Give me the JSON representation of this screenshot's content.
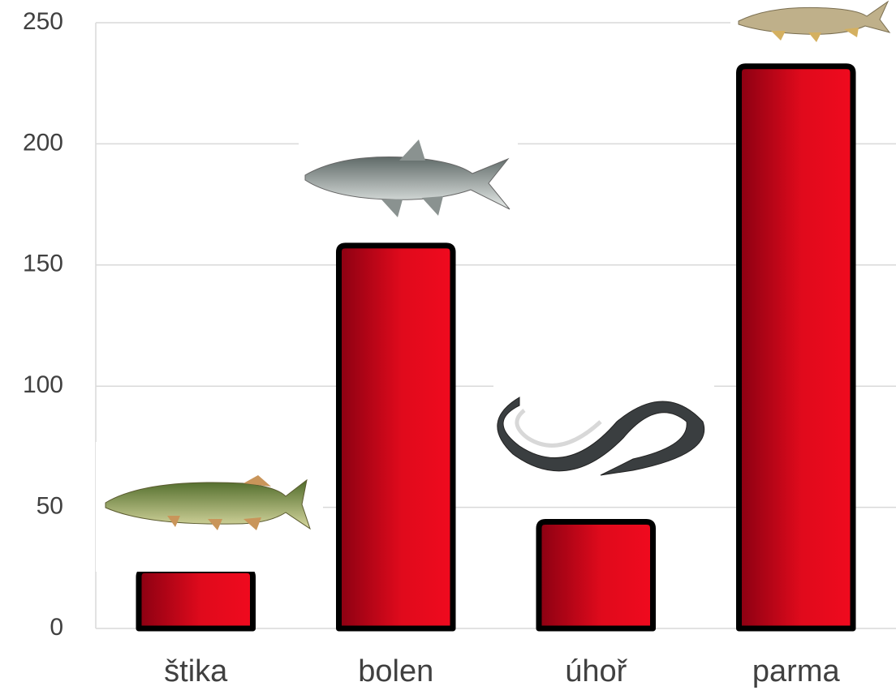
{
  "chart_data": {
    "type": "bar",
    "categories": [
      "štika",
      "bolen",
      "úhoř",
      "parma"
    ],
    "values": [
      24,
      158,
      44,
      232
    ],
    "color": "#f00a1e",
    "ylim": [
      0,
      250
    ],
    "yticks": [
      0,
      50,
      100,
      150,
      200,
      250
    ],
    "grid": true
  }
}
